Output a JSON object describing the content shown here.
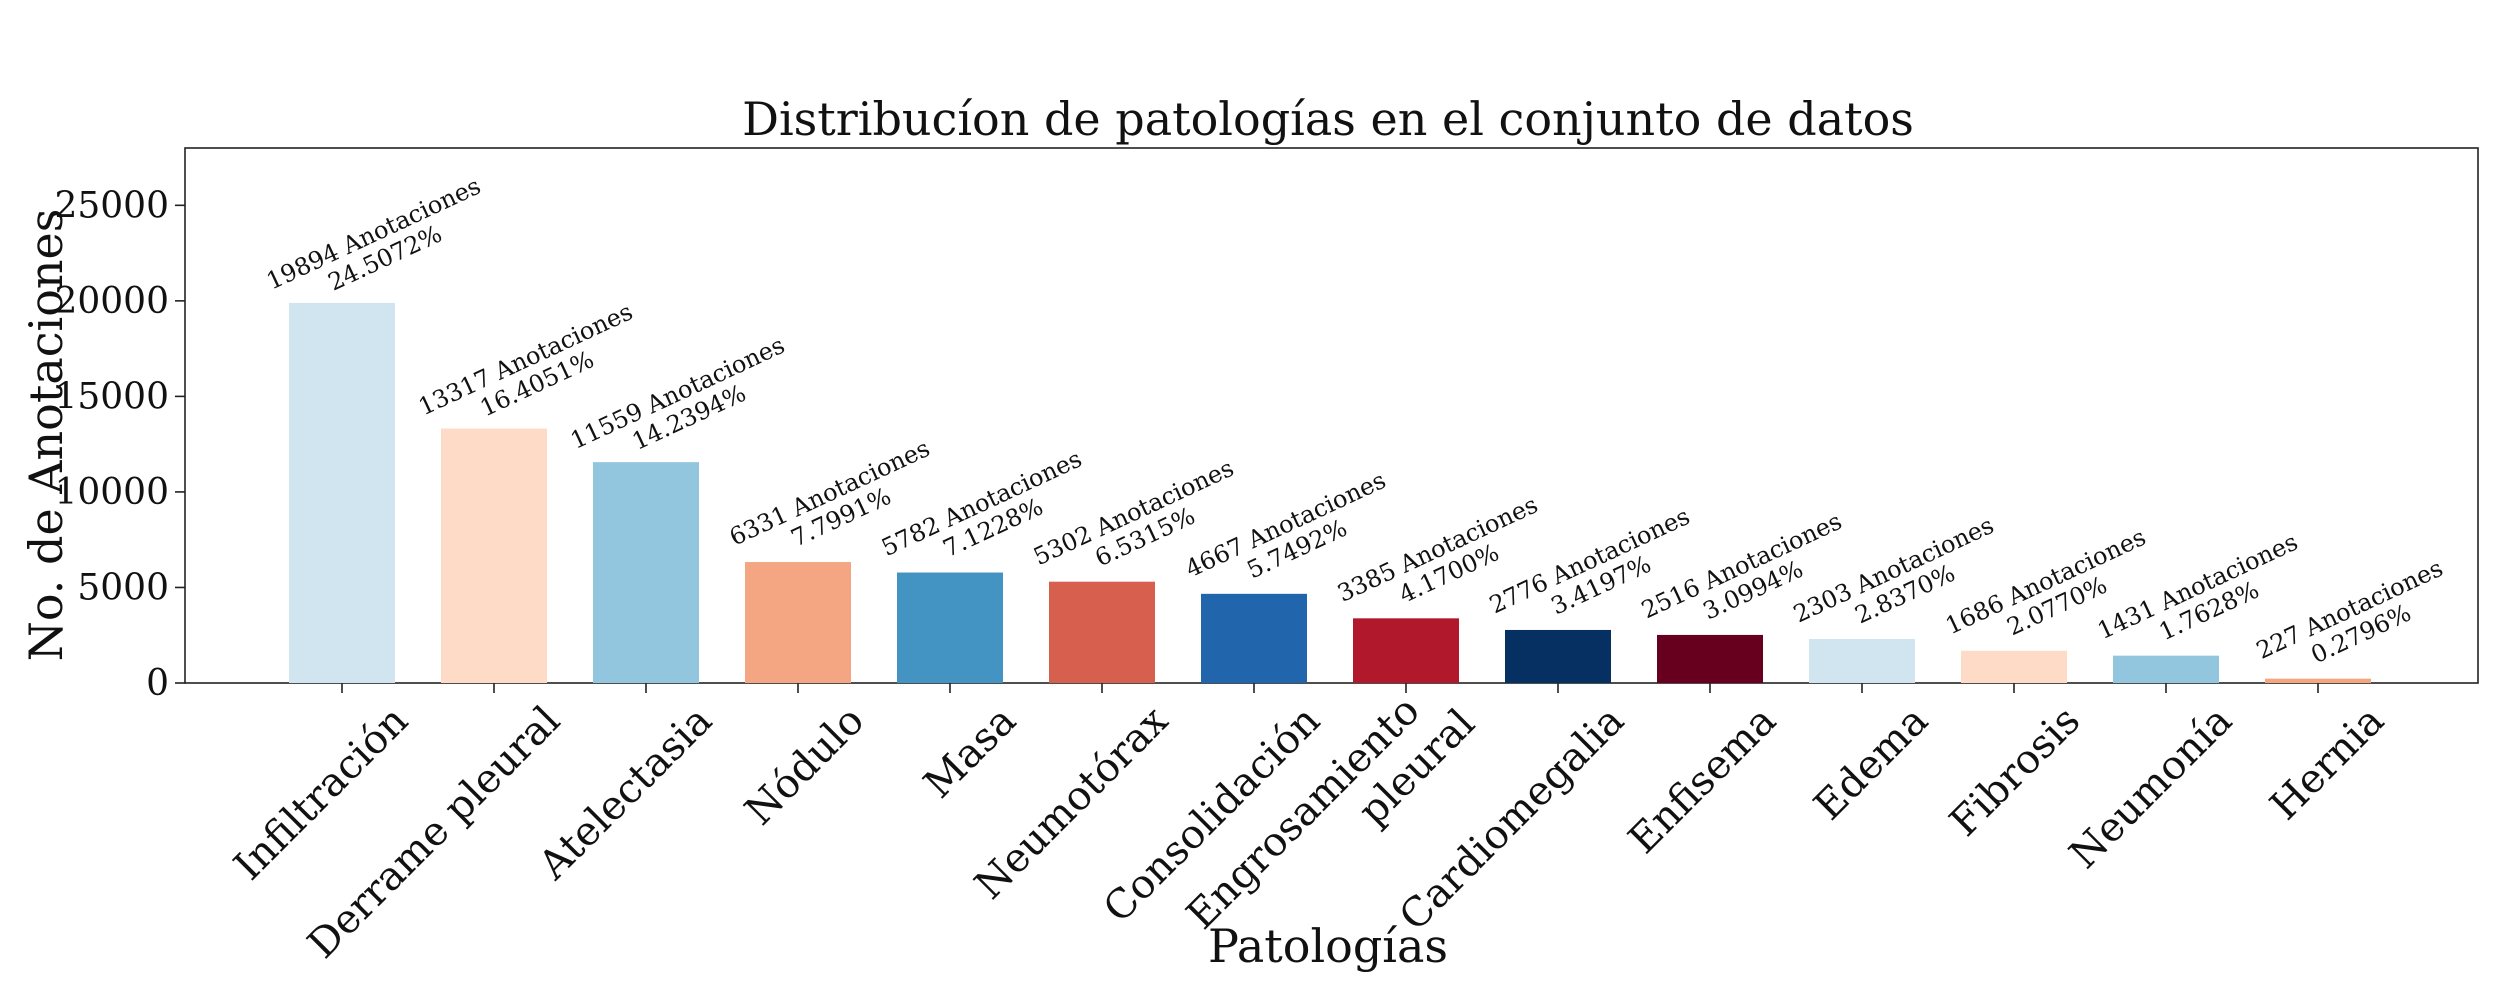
{
  "chart_data": {
    "type": "bar",
    "title": "Distribucíon de patologías en el conjunto de datos",
    "xlabel": "Patologías",
    "ylabel": "No. de Anotaciones",
    "ylim": [
      0,
      28000
    ],
    "yticks": [
      "0",
      "5000",
      "10000",
      "15000",
      "20000",
      "25000"
    ],
    "categories": [
      "Infiltración",
      "Derrame pleural",
      "Atelectasia",
      "Nódulo",
      "Masa",
      "Neumotórax",
      "Consolidación",
      "Engrosamiento\npleural",
      "Cardiomegalia",
      "Enfisema",
      "Edema",
      "Fibrosis",
      "Neumonía",
      "Hernia"
    ],
    "values": [
      19894,
      13317,
      11559,
      6331,
      5782,
      5302,
      4667,
      3385,
      2776,
      2516,
      2303,
      1686,
      1431,
      227
    ],
    "data_labels": [
      [
        "19894 Anotaciones",
        "24.5072%"
      ],
      [
        "13317 Anotaciones",
        "16.4051%"
      ],
      [
        "11559 Anotaciones",
        "14.2394%"
      ],
      [
        "6331 Anotaciones",
        "7.7991%"
      ],
      [
        "5782 Anotaciones",
        "7.1228%"
      ],
      [
        "5302 Anotaciones",
        "6.5315%"
      ],
      [
        "4667 Anotaciones",
        "5.7492%"
      ],
      [
        "3385 Anotaciones",
        "4.1700%"
      ],
      [
        "2776 Anotaciones",
        "3.4197%"
      ],
      [
        "2516 Anotaciones",
        "3.0994%"
      ],
      [
        "2303 Anotaciones",
        "2.8370%"
      ],
      [
        "1686 Anotaciones",
        "2.0770%"
      ],
      [
        "1431 Anotaciones",
        "1.7628%"
      ],
      [
        "227 Anotaciones",
        "0.2796%"
      ]
    ],
    "colors": [
      "#d1e5f0",
      "#fddbc7",
      "#92c5de",
      "#f4a582",
      "#4393c3",
      "#d6604d",
      "#2166ac",
      "#b2182b",
      "#053061",
      "#67001f",
      "#d1e5f0",
      "#fddbc7",
      "#92c5de",
      "#f4a582"
    ],
    "grid": false,
    "legend": "none"
  }
}
